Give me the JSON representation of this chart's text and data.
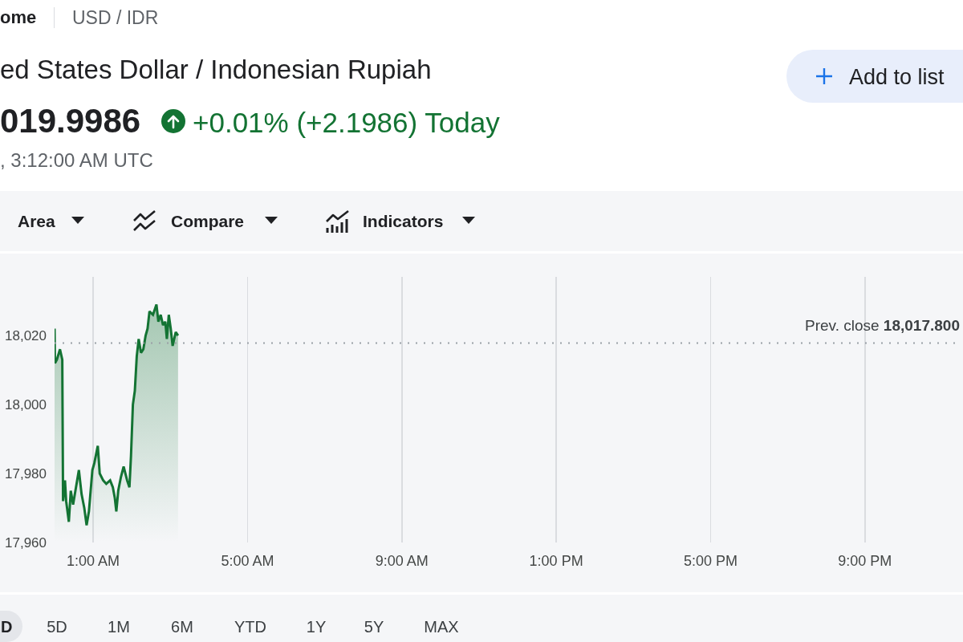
{
  "chart_data": {
    "type": "area",
    "title": "ed States Dollar / Indonesian Rupiah",
    "annotations": [
      "ome",
      "USD / IDR",
      "019.9986",
      "+0.01% (+2.1986) Today",
      ", 3:12:00 AM UTC",
      "Add to list",
      "Area",
      "Compare",
      "Indicators",
      "D",
      "5D",
      "1M",
      "6M",
      "YTD",
      "1Y",
      "5Y",
      "MAX"
    ],
    "x": [
      0,
      0.01,
      0.06,
      0.14,
      0.2,
      0.22,
      0.27,
      0.3,
      0.37,
      0.42,
      0.48,
      0.54,
      0.63,
      0.7,
      0.77,
      0.83,
      0.89,
      0.98,
      1.03,
      1.12,
      1.17,
      1.26,
      1.34,
      1.44,
      1.51,
      1.56,
      1.6,
      1.65,
      1.72,
      1.79,
      1.88,
      1.94,
      1.98,
      2.03,
      2.08,
      2.13,
      2.18,
      2.24,
      2.3,
      2.36,
      2.41,
      2.46,
      2.55,
      2.64,
      2.69,
      2.75,
      2.81,
      2.87,
      2.91,
      2.96,
      3.01,
      3.06,
      3.14,
      3.2
    ],
    "series": [
      {
        "color": "#137333",
        "values": [
          18022,
          18012,
          18013,
          18016,
          18013,
          17972,
          17978,
          17972,
          17966,
          17975,
          17971,
          17975,
          17981,
          17974,
          17970,
          17965,
          17969,
          17981,
          17983,
          17988,
          17980,
          17978,
          17977,
          17978,
          17976,
          17973,
          17969,
          17975,
          17979,
          17982,
          17978,
          17976,
          17985,
          18000,
          18004,
          18014,
          18019,
          18015,
          18016,
          18020,
          18022,
          18027,
          18026,
          18029,
          18024,
          18026,
          18023,
          18024,
          18019,
          18026,
          18022,
          18017,
          18021,
          18020
        ]
      }
    ],
    "xlim": [
      0,
      23.5
    ],
    "xticks": [
      {
        "value": 1,
        "label": "1:00 AM"
      },
      {
        "value": 5,
        "label": "5:00 AM"
      },
      {
        "value": 9,
        "label": "9:00 AM"
      },
      {
        "value": 13,
        "label": "1:00 PM"
      },
      {
        "value": 17,
        "label": "5:00 PM"
      },
      {
        "value": 21,
        "label": "9:00 PM"
      }
    ],
    "ylim": [
      17960,
      18037
    ],
    "yticks": [
      {
        "value": 17960,
        "label": "17,960"
      },
      {
        "value": 17980,
        "label": "17,980"
      },
      {
        "value": 18000,
        "label": "18,000"
      },
      {
        "value": 18020,
        "label": "18,020"
      }
    ],
    "grid": "x",
    "ref_lines": [
      {
        "axis": "y",
        "value": 18017.8,
        "label": "Prev. close 18,017.800",
        "color": "#9aa0a6",
        "line_style": "dotted"
      }
    ]
  }
}
